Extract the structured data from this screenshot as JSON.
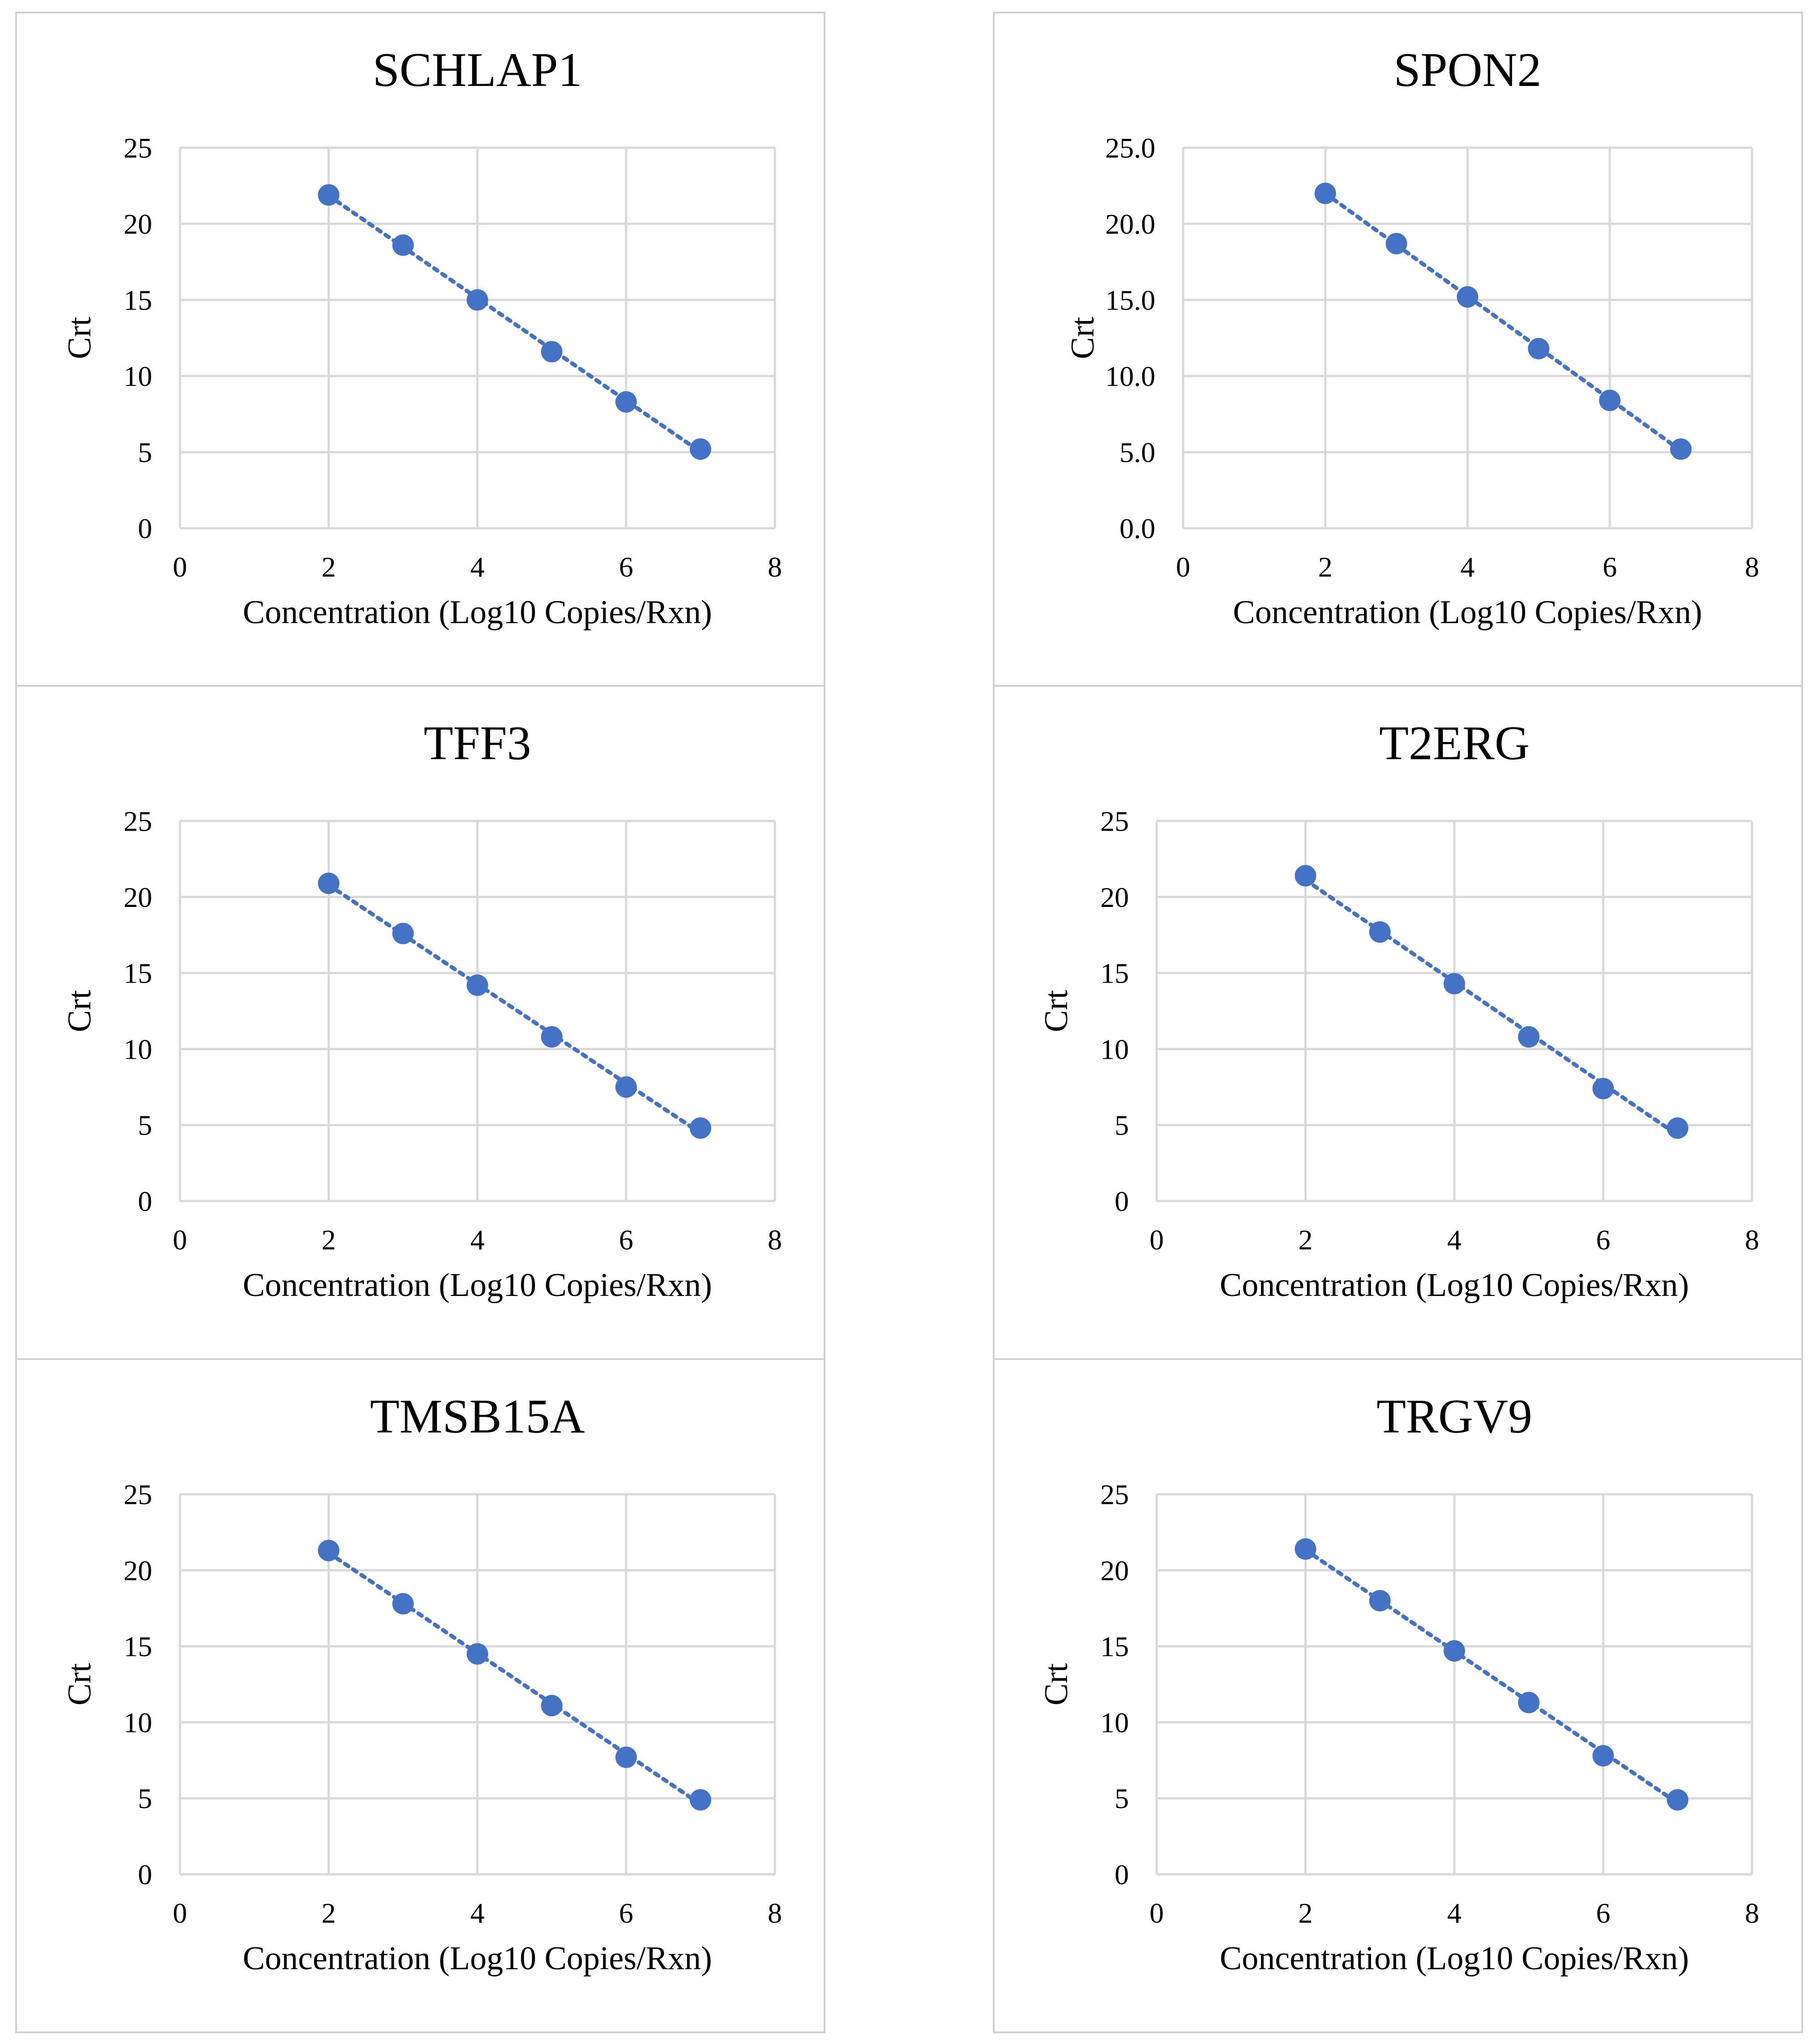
{
  "colors": {
    "marker": "#4472C4",
    "trendline": "#4472C4"
  },
  "chart_data": [
    {
      "type": "scatter",
      "title": "SCHLAP1",
      "xlabel": "Concentration (Log10 Copies/Rxn)",
      "ylabel": "Crt",
      "xlim": [
        0,
        8
      ],
      "ylim": [
        0,
        25
      ],
      "x_ticks": [
        "0",
        "2",
        "4",
        "6",
        "8"
      ],
      "y_ticks": [
        "0",
        "5",
        "10",
        "15",
        "20",
        "25"
      ],
      "grid": true,
      "trendline": "linear (dotted)",
      "x": [
        2,
        3,
        4,
        5,
        6,
        7
      ],
      "y": [
        21.9,
        18.6,
        15.0,
        11.6,
        8.3,
        5.2
      ]
    },
    {
      "type": "scatter",
      "title": "SPON2",
      "xlabel": "Concentration (Log10 Copies/Rxn)",
      "ylabel": "Crt",
      "xlim": [
        0,
        8
      ],
      "ylim": [
        0,
        25
      ],
      "x_ticks": [
        "0",
        "2",
        "4",
        "6",
        "8"
      ],
      "y_ticks": [
        "0.0",
        "5.0",
        "10.0",
        "15.0",
        "20.0",
        "25.0"
      ],
      "grid": true,
      "trendline": "linear (dotted)",
      "x": [
        2,
        3,
        4,
        5,
        6,
        7
      ],
      "y": [
        22.0,
        18.7,
        15.2,
        11.8,
        8.4,
        5.2
      ]
    },
    {
      "type": "scatter",
      "title": "TFF3",
      "xlabel": "Concentration (Log10 Copies/Rxn)",
      "ylabel": "Crt",
      "xlim": [
        0,
        8
      ],
      "ylim": [
        0,
        25
      ],
      "x_ticks": [
        "0",
        "2",
        "4",
        "6",
        "8"
      ],
      "y_ticks": [
        "0",
        "5",
        "10",
        "15",
        "20",
        "25"
      ],
      "grid": true,
      "trendline": "linear (dotted)",
      "x": [
        2,
        3,
        4,
        5,
        6,
        7
      ],
      "y": [
        20.9,
        17.6,
        14.2,
        10.8,
        7.5,
        4.8
      ]
    },
    {
      "type": "scatter",
      "title": "T2ERG",
      "xlabel": "Concentration (Log10 Copies/Rxn)",
      "ylabel": "Crt",
      "xlim": [
        0,
        8
      ],
      "ylim": [
        0,
        25
      ],
      "x_ticks": [
        "0",
        "2",
        "4",
        "6",
        "8"
      ],
      "y_ticks": [
        "0",
        "5",
        "10",
        "15",
        "20",
        "25"
      ],
      "grid": true,
      "trendline": "linear (dotted)",
      "x": [
        2,
        3,
        4,
        5,
        6,
        7
      ],
      "y": [
        21.4,
        17.7,
        14.3,
        10.8,
        7.4,
        4.8
      ]
    },
    {
      "type": "scatter",
      "title": "TMSB15A",
      "xlabel": "Concentration (Log10 Copies/Rxn)",
      "ylabel": "Crt",
      "xlim": [
        0,
        8
      ],
      "ylim": [
        0,
        25
      ],
      "x_ticks": [
        "0",
        "2",
        "4",
        "6",
        "8"
      ],
      "y_ticks": [
        "0",
        "5",
        "10",
        "15",
        "20",
        "25"
      ],
      "grid": true,
      "trendline": "linear (dotted)",
      "x": [
        2,
        3,
        4,
        5,
        6,
        7
      ],
      "y": [
        21.3,
        17.8,
        14.5,
        11.1,
        7.7,
        4.9
      ]
    },
    {
      "type": "scatter",
      "title": "TRGV9",
      "xlabel": "Concentration (Log10 Copies/Rxn)",
      "ylabel": "Crt",
      "xlim": [
        0,
        8
      ],
      "ylim": [
        0,
        25
      ],
      "x_ticks": [
        "0",
        "2",
        "4",
        "6",
        "8"
      ],
      "y_ticks": [
        "0",
        "5",
        "10",
        "15",
        "20",
        "25"
      ],
      "grid": true,
      "trendline": "linear (dotted)",
      "x": [
        2,
        3,
        4,
        5,
        6,
        7
      ],
      "y": [
        21.4,
        18.0,
        14.7,
        11.3,
        7.8,
        4.9
      ]
    }
  ]
}
